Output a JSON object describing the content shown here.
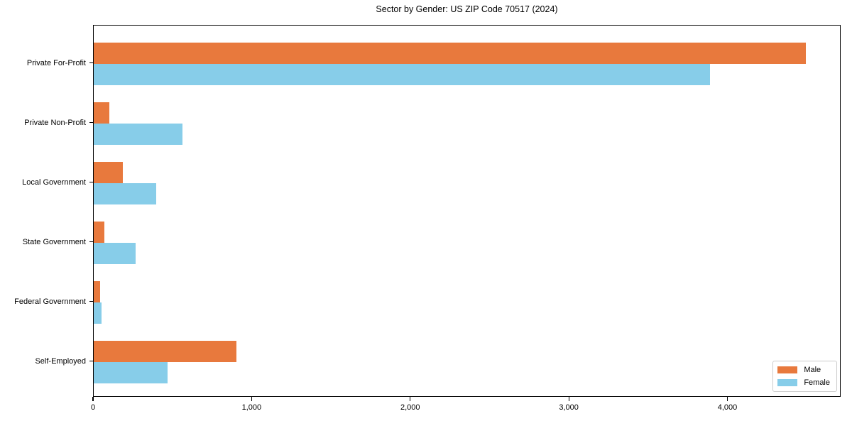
{
  "window": {
    "background": "#ffffff"
  },
  "chart_data": {
    "type": "bar",
    "orientation": "horizontal",
    "title": "Sector by Gender: US ZIP Code 70517 (2024)",
    "xlabel": "",
    "ylabel": "",
    "categories": [
      "Private For-Profit",
      "Private Non-Profit",
      "Local Government",
      "State Government",
      "Federal Government",
      "Self-Employed"
    ],
    "series": [
      {
        "name": "Male",
        "color": "#e8793d",
        "values": [
          4490,
          100,
          185,
          65,
          40,
          900
        ]
      },
      {
        "name": "Female",
        "color": "#87cde9",
        "values": [
          3885,
          560,
          395,
          265,
          50,
          465
        ]
      }
    ],
    "xlim": [
      0,
      4714
    ],
    "x_ticks": [
      {
        "value": 0,
        "label": "0"
      },
      {
        "value": 1000,
        "label": "1,000"
      },
      {
        "value": 2000,
        "label": "2,000"
      },
      {
        "value": 3000,
        "label": "3,000"
      },
      {
        "value": 4000,
        "label": "4,000"
      }
    ],
    "grid": false,
    "legend": {
      "position": "lower right",
      "entries": [
        "Male",
        "Female"
      ]
    },
    "frame_color": "#000000",
    "legend_border_color": "#cccccc"
  }
}
